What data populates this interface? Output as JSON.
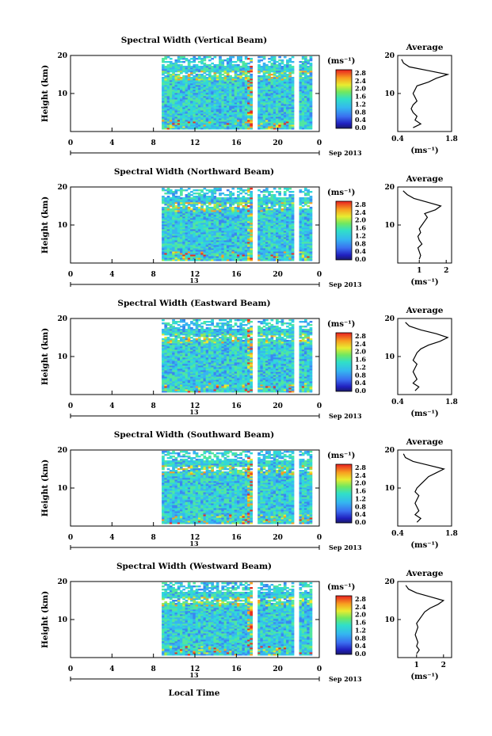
{
  "figure": {
    "xlabel": "Local Time",
    "date_label": "Sep 2013",
    "ylabel": "Height (km)",
    "avg_title": "Average",
    "cb_unit": "(ms⁻¹)",
    "avg_xlabel": "(ms⁻¹)"
  },
  "chart_data": [
    {
      "type": "heatmap",
      "title": "Spectral Width (Vertical Beam)",
      "x_ticks": [
        "0",
        "4",
        "8",
        "12",
        "16",
        "20",
        "0"
      ],
      "x_range_hours": [
        0,
        24
      ],
      "day_label": "",
      "y_ticks": [
        "10",
        "20"
      ],
      "ylim": [
        0,
        20
      ],
      "colorbar_ticks": [
        "0.0",
        "0.4",
        "0.8",
        "1.2",
        "1.6",
        "2.0",
        "2.4",
        "2.8"
      ],
      "colorbar_range": [
        0,
        3.0
      ],
      "average": {
        "title": "Average",
        "xlim": [
          0.4,
          1.8
        ],
        "x_ticks": [
          "0.4",
          "1.8"
        ],
        "height_km": [
          1,
          2,
          3,
          4,
          5,
          6,
          7,
          8,
          9,
          10,
          11,
          12,
          13,
          14,
          15,
          16,
          17,
          18,
          19
        ],
        "values": [
          0.8,
          1.0,
          0.85,
          0.9,
          0.8,
          0.75,
          0.8,
          0.9,
          0.85,
          0.8,
          0.85,
          0.9,
          1.2,
          1.4,
          1.7,
          1.2,
          0.7,
          0.55,
          0.5
        ]
      }
    },
    {
      "type": "heatmap",
      "title": "Spectral Width (Northward Beam)",
      "x_ticks": [
        "0",
        "4",
        "8",
        "12",
        "16",
        "20",
        "0"
      ],
      "x_range_hours": [
        0,
        24
      ],
      "day_label": "13",
      "y_ticks": [
        "10",
        "20"
      ],
      "ylim": [
        0,
        20
      ],
      "colorbar_ticks": [
        "0.0",
        "0.4",
        "0.8",
        "1.2",
        "1.6",
        "2.0",
        "2.4",
        "2.8"
      ],
      "colorbar_range": [
        0,
        3.0
      ],
      "average": {
        "title": "Average",
        "xlim": [
          0.2,
          2.2
        ],
        "x_ticks": [
          "1",
          "2"
        ],
        "height_km": [
          1,
          2,
          3,
          4,
          5,
          6,
          7,
          8,
          9,
          10,
          11,
          12,
          13,
          14,
          15,
          16,
          17,
          18,
          19
        ],
        "values": [
          1.0,
          1.05,
          1.0,
          0.95,
          1.1,
          1.0,
          0.95,
          1.05,
          1.0,
          1.1,
          1.2,
          1.3,
          1.2,
          1.6,
          1.8,
          1.3,
          0.8,
          0.55,
          0.4
        ]
      }
    },
    {
      "type": "heatmap",
      "title": "Spectral Width (Eastward Beam)",
      "x_ticks": [
        "0",
        "4",
        "8",
        "12",
        "16",
        "20",
        "0"
      ],
      "x_range_hours": [
        0,
        24
      ],
      "day_label": "13",
      "y_ticks": [
        "10",
        "20"
      ],
      "ylim": [
        0,
        20
      ],
      "colorbar_ticks": [
        "0.0",
        "0.4",
        "0.8",
        "1.2",
        "1.6",
        "2.0",
        "2.4",
        "2.8"
      ],
      "colorbar_range": [
        0,
        3.0
      ],
      "average": {
        "title": "Average",
        "xlim": [
          0.4,
          1.8
        ],
        "x_ticks": [
          "0.4",
          "1.8"
        ],
        "height_km": [
          1,
          2,
          3,
          4,
          5,
          6,
          7,
          8,
          9,
          10,
          11,
          12,
          13,
          14,
          15,
          16,
          17,
          18,
          19
        ],
        "values": [
          0.85,
          0.95,
          0.8,
          0.9,
          0.85,
          0.8,
          0.85,
          0.9,
          0.8,
          0.85,
          0.9,
          1.0,
          1.2,
          1.5,
          1.7,
          1.4,
          1.0,
          0.7,
          0.6
        ]
      }
    },
    {
      "type": "heatmap",
      "title": "Spectral Width (Southward Beam)",
      "x_ticks": [
        "0",
        "4",
        "8",
        "12",
        "16",
        "20",
        "0"
      ],
      "x_range_hours": [
        0,
        24
      ],
      "day_label": "13",
      "y_ticks": [
        "10",
        "20"
      ],
      "ylim": [
        0,
        20
      ],
      "colorbar_ticks": [
        "0.0",
        "0.4",
        "0.8",
        "1.2",
        "1.6",
        "2.0",
        "2.4",
        "2.8"
      ],
      "colorbar_range": [
        0,
        3.0
      ],
      "average": {
        "title": "Average",
        "xlim": [
          0.4,
          1.8
        ],
        "x_ticks": [
          "0.4",
          "1.8"
        ],
        "height_km": [
          1,
          2,
          3,
          4,
          5,
          6,
          7,
          8,
          9,
          10,
          11,
          12,
          13,
          14,
          15,
          16,
          17,
          18,
          19
        ],
        "values": [
          0.9,
          1.0,
          0.85,
          0.95,
          0.9,
          0.85,
          0.9,
          0.95,
          0.85,
          0.9,
          1.0,
          1.1,
          1.2,
          1.4,
          1.6,
          1.2,
          0.8,
          0.6,
          0.55
        ]
      }
    },
    {
      "type": "heatmap",
      "title": "Spectral Width (Westward Beam)",
      "x_ticks": [
        "0",
        "4",
        "8",
        "12",
        "16",
        "20",
        "0"
      ],
      "x_range_hours": [
        0,
        24
      ],
      "day_label": "13",
      "y_ticks": [
        "10",
        "20"
      ],
      "ylim": [
        0,
        20
      ],
      "colorbar_ticks": [
        "0.0",
        "0.4",
        "0.8",
        "1.2",
        "1.6",
        "2.0",
        "2.4",
        "2.8"
      ],
      "colorbar_range": [
        0,
        3.0
      ],
      "average": {
        "title": "Average",
        "xlim": [
          0.3,
          2.3
        ],
        "x_ticks": [
          "1",
          "2"
        ],
        "height_km": [
          1,
          2,
          3,
          4,
          5,
          6,
          7,
          8,
          9,
          10,
          11,
          12,
          13,
          14,
          15,
          16,
          17,
          18,
          19
        ],
        "values": [
          1.0,
          1.1,
          1.0,
          1.05,
          1.0,
          0.95,
          1.0,
          1.05,
          1.0,
          1.1,
          1.2,
          1.3,
          1.5,
          1.8,
          2.0,
          1.5,
          1.0,
          0.7,
          0.6
        ]
      }
    }
  ]
}
